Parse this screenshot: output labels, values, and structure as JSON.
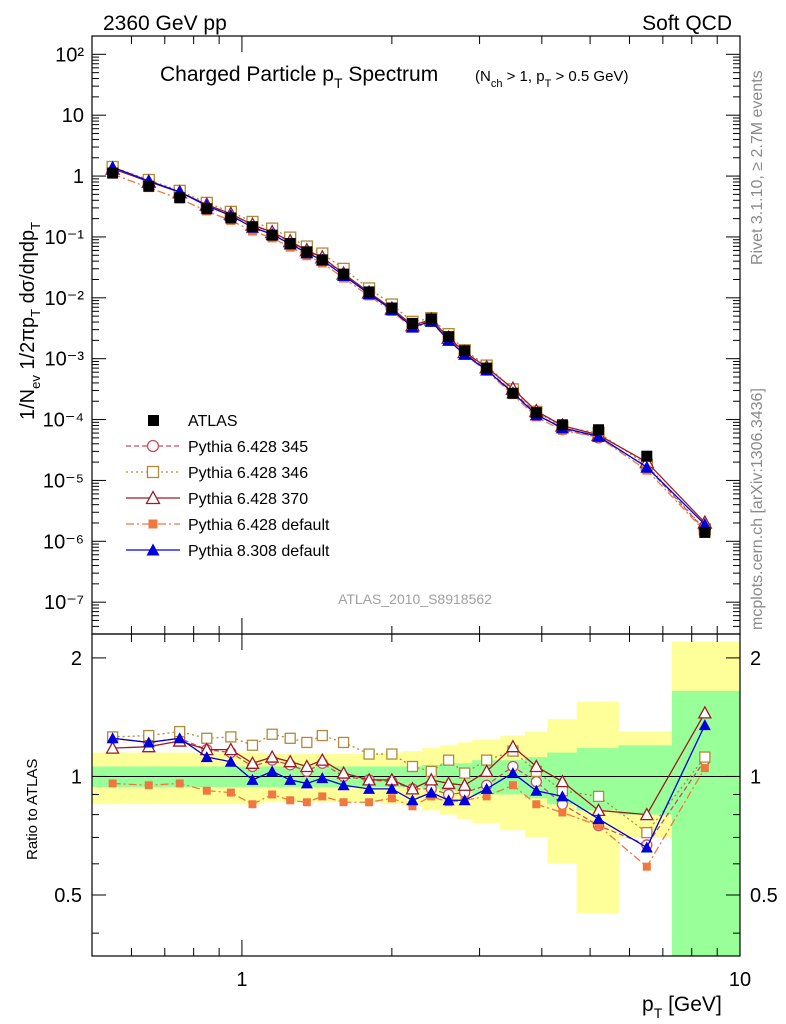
{
  "header": {
    "left": "2360 GeV pp",
    "right": "Soft QCD",
    "side_top": "Rivet 3.1.10, ≥ 2.7M events",
    "side_bottom": "mcplots.cern.ch [arXiv:1306.3436]",
    "ref_code": "ATLAS_2010_S8918562"
  },
  "chart_data": [
    {
      "type": "scatter",
      "title": "Charged Particle p_T Spectrum",
      "subtitle": "(N_ch > 1, p_T > 0.5 GeV)",
      "ylabel": "1/N_ev 1/2πp_T dσ/dηdp_T",
      "xlabel": "p_T  [GeV]",
      "xscale": "log",
      "yscale": "log",
      "xlim": [
        0.5,
        10
      ],
      "ylim": [
        3e-08,
        200
      ],
      "y_ticks": [
        {
          "v": 1e-07,
          "label": "10⁻⁷"
        },
        {
          "v": 1e-06,
          "label": "10⁻⁶"
        },
        {
          "v": 1e-05,
          "label": "10⁻⁵"
        },
        {
          "v": 0.0001,
          "label": "10⁻⁴"
        },
        {
          "v": 0.001,
          "label": "10⁻³"
        },
        {
          "v": 0.01,
          "label": "10⁻²"
        },
        {
          "v": 0.1,
          "label": "10⁻¹"
        },
        {
          "v": 1,
          "label": "1"
        },
        {
          "v": 10,
          "label": "10"
        },
        {
          "v": 100,
          "label": "10²"
        }
      ],
      "legend_position": "bottom-left",
      "x": [
        0.55,
        0.65,
        0.75,
        0.85,
        0.95,
        1.05,
        1.15,
        1.25,
        1.35,
        1.45,
        1.6,
        1.8,
        2.0,
        2.2,
        2.4,
        2.6,
        2.8,
        3.1,
        3.5,
        3.9,
        4.4,
        5.2,
        6.5,
        8.5
      ],
      "atlas": [
        1.12,
        0.68,
        0.44,
        0.29,
        0.205,
        0.147,
        0.107,
        0.078,
        0.057,
        0.042,
        0.0245,
        0.0125,
        0.0068,
        0.0038,
        0.0045,
        0.0023,
        0.00135,
        0.0007,
        0.00027,
        0.00013,
        8.2e-05,
        6.8e-05,
        2.5e-05,
        1.4e-06
      ],
      "series": [
        {
          "name": "Pythia 6.428 345",
          "key": "p345",
          "color": "#c85064",
          "marker": "open-circle",
          "dash": "5,3"
        },
        {
          "name": "Pythia 6.428 346",
          "key": "p346",
          "color": "#b08a3a",
          "marker": "open-square",
          "dash": "2,3"
        },
        {
          "name": "Pythia 6.428 370",
          "key": "p370",
          "color": "#9a1c24",
          "marker": "open-triangle",
          "dash": ""
        },
        {
          "name": "Pythia 6.428 default",
          "key": "p6def",
          "color": "#f07840",
          "marker": "filled-square",
          "dash": "8,3,2,3"
        },
        {
          "name": "Pythia 8.308 default",
          "key": "p8def",
          "color": "#0000dc",
          "marker": "filled-triangle",
          "dash": ""
        }
      ],
      "legend_label_data": "ATLAS"
    },
    {
      "type": "scatter",
      "ylabel": "Ratio to ATLAS",
      "xlabel": "p_T  [GeV]",
      "xscale": "log",
      "yscale": "log",
      "xlim": [
        0.5,
        10
      ],
      "ylim": [
        0.35,
        2.3
      ],
      "y_ticks": [
        {
          "v": 0.5,
          "label": "0.5"
        },
        {
          "v": 1,
          "label": "1"
        },
        {
          "v": 2,
          "label": "2"
        }
      ],
      "x_ticks": [
        {
          "v": 1,
          "label": "1"
        },
        {
          "v": 10,
          "label": "10"
        }
      ],
      "bin_edges": [
        0.5,
        0.6,
        0.7,
        0.8,
        0.9,
        1.0,
        1.1,
        1.2,
        1.3,
        1.4,
        1.5,
        1.7,
        1.9,
        2.1,
        2.3,
        2.5,
        2.7,
        2.9,
        3.3,
        3.7,
        4.1,
        4.7,
        5.7,
        7.3,
        10
      ],
      "band_green_halfwidth": [
        0.06,
        0.06,
        0.06,
        0.06,
        0.06,
        0.06,
        0.06,
        0.06,
        0.06,
        0.06,
        0.06,
        0.06,
        0.06,
        0.06,
        0.07,
        0.08,
        0.08,
        0.1,
        0.1,
        0.12,
        0.15,
        0.18,
        0.2,
        0.65
      ],
      "band_yellow_halfwidth": [
        0.15,
        0.15,
        0.15,
        0.15,
        0.15,
        0.15,
        0.14,
        0.14,
        0.14,
        0.14,
        0.14,
        0.14,
        0.15,
        0.16,
        0.18,
        0.2,
        0.22,
        0.24,
        0.27,
        0.3,
        0.4,
        0.55,
        0.3,
        1.2
      ],
      "p345": [
        1.25,
        1.22,
        1.25,
        1.17,
        1.15,
        1.06,
        1.1,
        1.07,
        1.03,
        1.08,
        1.0,
        0.98,
        0.97,
        0.93,
        0.93,
        0.9,
        0.91,
        0.95,
        1.06,
        0.97,
        0.85,
        0.75,
        0.67,
        1.1
      ],
      "p346": [
        1.26,
        1.27,
        1.3,
        1.25,
        1.26,
        1.2,
        1.28,
        1.25,
        1.22,
        1.27,
        1.22,
        1.14,
        1.14,
        1.06,
        1.03,
        1.1,
        1.02,
        1.1,
        1.16,
        1.03,
        0.92,
        0.89,
        0.72,
        1.12
      ],
      "p370": [
        1.18,
        1.19,
        1.23,
        1.17,
        1.17,
        1.08,
        1.12,
        1.09,
        1.06,
        1.1,
        1.02,
        0.98,
        0.98,
        0.93,
        0.98,
        0.96,
        0.95,
        1.03,
        1.19,
        1.06,
        0.97,
        0.82,
        0.8,
        1.45
      ],
      "p6def": [
        0.96,
        0.95,
        0.96,
        0.92,
        0.91,
        0.85,
        0.9,
        0.87,
        0.86,
        0.89,
        0.86,
        0.86,
        0.88,
        0.84,
        0.89,
        0.86,
        0.87,
        0.89,
        0.95,
        0.85,
        0.81,
        0.75,
        0.59,
        1.05
      ],
      "p8def": [
        1.25,
        1.22,
        1.25,
        1.12,
        1.09,
        0.98,
        1.03,
        0.98,
        0.96,
        0.99,
        0.95,
        0.93,
        0.93,
        0.87,
        0.91,
        0.87,
        0.87,
        0.93,
        1.02,
        0.92,
        0.89,
        0.78,
        0.66,
        1.35
      ]
    }
  ]
}
